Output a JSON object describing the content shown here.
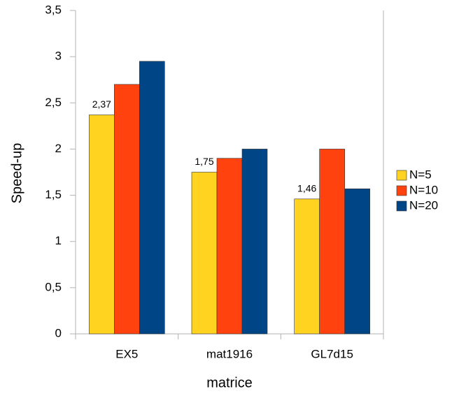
{
  "chart_data": {
    "type": "bar",
    "x_label": "matrice",
    "y_label": "Speed-up",
    "categories": [
      "EX5",
      "mat1916",
      "GL7d15"
    ],
    "series": [
      {
        "name": "N=5",
        "color": "#ffd320",
        "values": [
          2.37,
          1.75,
          1.46
        ],
        "value_labels": [
          "2,37",
          "1,75",
          "1,46"
        ]
      },
      {
        "name": "N=10",
        "color": "#ff420e",
        "values": [
          2.7,
          1.9,
          2.0
        ]
      },
      {
        "name": "N=20",
        "color": "#004586",
        "values": [
          2.95,
          2.0,
          1.57
        ]
      }
    ],
    "ylim": [
      0,
      3.5
    ],
    "yticks": [
      0,
      {
        "value": 0.5,
        "label": "0,5"
      },
      1,
      {
        "value": 1.5,
        "label": "1,5"
      },
      2,
      {
        "value": 2.5,
        "label": "2,5"
      },
      3,
      {
        "value": 3.5,
        "label": "3,5"
      }
    ],
    "grid": false,
    "legend": "right"
  }
}
